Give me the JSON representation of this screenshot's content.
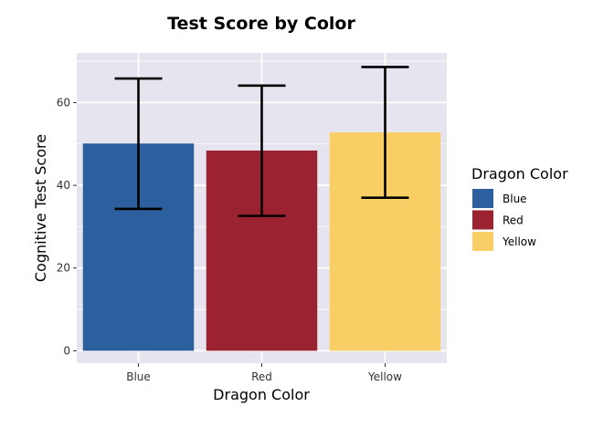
{
  "chart_data": {
    "type": "bar",
    "title": "Test Score by Color",
    "xlabel": "Dragon Color",
    "ylabel": "Cognitive Test Score",
    "categories": [
      "Blue",
      "Red",
      "Yellow"
    ],
    "values": [
      50.1,
      48.4,
      52.8
    ],
    "error_low": [
      34.3,
      32.6,
      37.0
    ],
    "error_high": [
      65.8,
      64.1,
      68.6
    ],
    "ylim": [
      -3,
      72
    ],
    "yticks": [
      0,
      20,
      40,
      60
    ],
    "grid": true,
    "legend": {
      "title": "Dragon Color",
      "placement": "right",
      "entries": [
        "Blue",
        "Red",
        "Yellow"
      ]
    },
    "colors": {
      "Blue": "#2b5f9e",
      "Red": "#9b2230",
      "Yellow": "#f9cf65",
      "panel_background": "#e6e4ef",
      "gridline": "#ffffff",
      "error_bar": "#000000"
    }
  }
}
